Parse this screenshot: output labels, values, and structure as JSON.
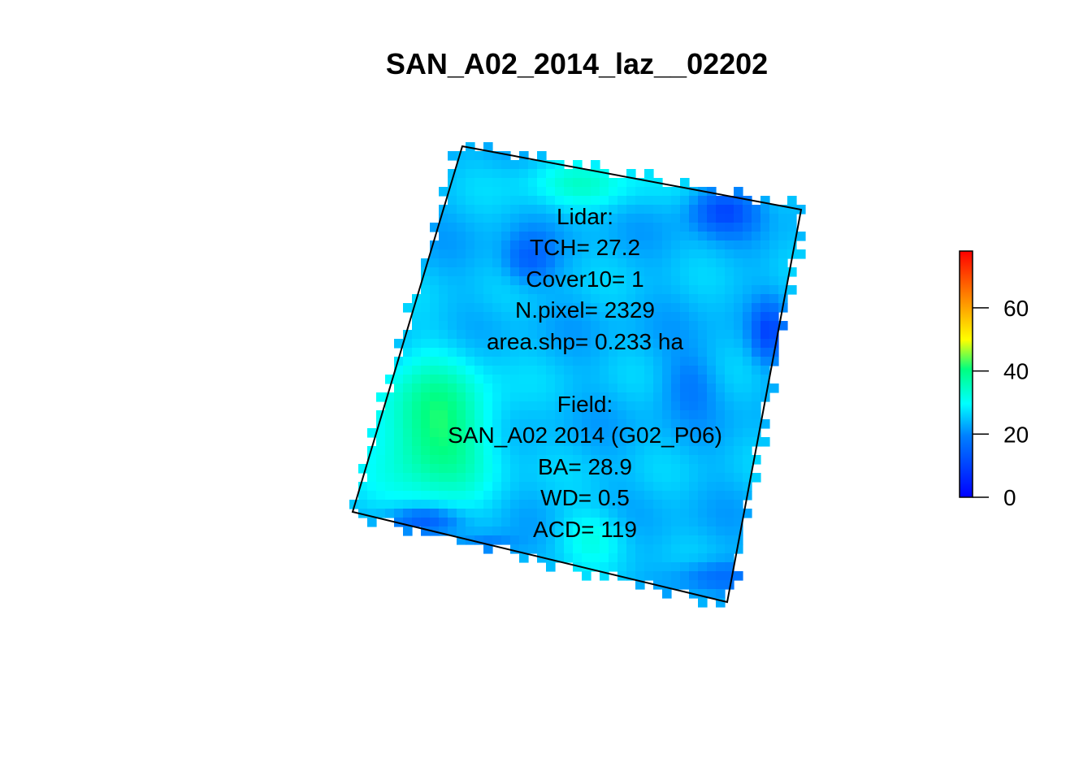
{
  "title": "SAN_A02_2014_laz__02202",
  "lidar": {
    "heading": "Lidar:",
    "tch": "TCH= 27.2",
    "cover10": "Cover10= 1",
    "npixel": "N.pixel= 2329",
    "area": "area.shp= 0.233 ha"
  },
  "field": {
    "heading": "Field:",
    "plot": "SAN_A02 2014 (G02_P06)",
    "ba": "BA= 28.9",
    "wd": "WD= 0.5",
    "acd": "ACD= 119"
  },
  "chart_data": {
    "type": "heatmap",
    "title": "SAN_A02_2014_laz__02202",
    "value_range": [
      0,
      78
    ],
    "dominant_value_range": [
      15,
      45
    ],
    "colorbar": {
      "ticks": [
        0,
        20,
        40,
        60
      ],
      "tick_labels": [
        "0",
        "20",
        "40",
        "60"
      ],
      "min": 0,
      "max": 78,
      "palette": [
        "#0000ff",
        "#00ffff",
        "#ffff00",
        "#ff0000"
      ]
    }
  }
}
